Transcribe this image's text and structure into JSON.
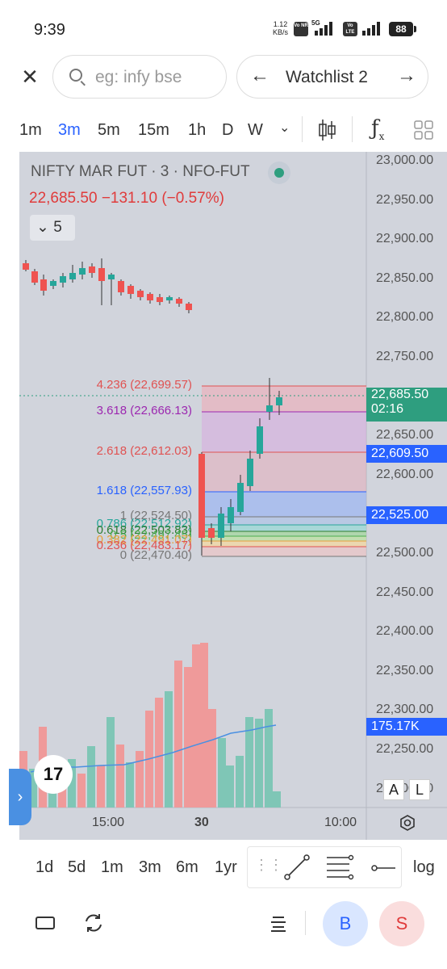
{
  "status_bar": {
    "time": "9:39",
    "net_speed_value": "1.12",
    "net_speed_unit": "KB/s",
    "chip1": "Vo NR",
    "chip2": "Vo LTE",
    "sim_label": "5G",
    "battery": "88"
  },
  "topbar": {
    "search_placeholder": "eg: infy bse",
    "watchlist_name": "Watchlist 2"
  },
  "intervals": {
    "items": [
      "1m",
      "3m",
      "5m",
      "15m",
      "1h",
      "D",
      "W"
    ],
    "active": "3m"
  },
  "legend": {
    "symbol": "NIFTY MAR FUT · 3 · NFO-FUT",
    "price": "22,685.50",
    "change": "−131.10",
    "change_pct": "(−0.57%)",
    "indicators_count": "5"
  },
  "price_axis": {
    "ticks": [
      "23,000.00",
      "22,950.00",
      "22,900.00",
      "22,850.00",
      "22,800.00",
      "22,750.00",
      "22,700.00",
      "22,650.00",
      "22,600.00",
      "22,550.00",
      "22,500.00",
      "22,450.00",
      "22,400.00",
      "22,350.00",
      "22,300.00",
      "22,250.00",
      "22,200.00"
    ]
  },
  "tags": {
    "last_price": "22,685.50",
    "countdown": "02:16",
    "line_a": "22,609.50",
    "line_b": "22,525.00",
    "volume": "175.17K"
  },
  "fib_levels": [
    {
      "label": "4.236 (22,699.57)",
      "color": "#e05252"
    },
    {
      "label": "3.618 (22,666.13)",
      "color": "#9c27b0"
    },
    {
      "label": "2.618 (22,612.03)",
      "color": "#e05252"
    },
    {
      "label": "1.618 (22,557.93)",
      "color": "#2962ff"
    },
    {
      "label": "1 (22,524.50)",
      "color": "#777777"
    },
    {
      "label": "0.786 (22,512.92)",
      "color": "#26a69a"
    },
    {
      "label": "0.618 (22,503.83)",
      "color": "#2e7d32"
    },
    {
      "label": "0.5 (22,497.45)",
      "color": "#4caf50"
    },
    {
      "label": "0.382 (22,491.07)",
      "color": "#e6a23c"
    },
    {
      "label": "0.236 (22,483.17)",
      "color": "#e05252"
    },
    {
      "label": "0 (22,470.40)",
      "color": "#777777"
    }
  ],
  "time_axis": {
    "labels": [
      "15:00",
      "30",
      "10:00"
    ]
  },
  "ab_buttons": [
    "A",
    "L"
  ],
  "ranges": {
    "items": [
      "1d",
      "5d",
      "1m",
      "3m",
      "6m",
      "1yr"
    ],
    "log_label": "log"
  },
  "orders": {
    "buy": "B",
    "sell": "S"
  },
  "colors": {
    "up": "#26a69a",
    "down": "#ef5350",
    "accent": "#2962ff",
    "tag_green": "#2e9e7f",
    "tag_blue": "#2962ff"
  }
}
